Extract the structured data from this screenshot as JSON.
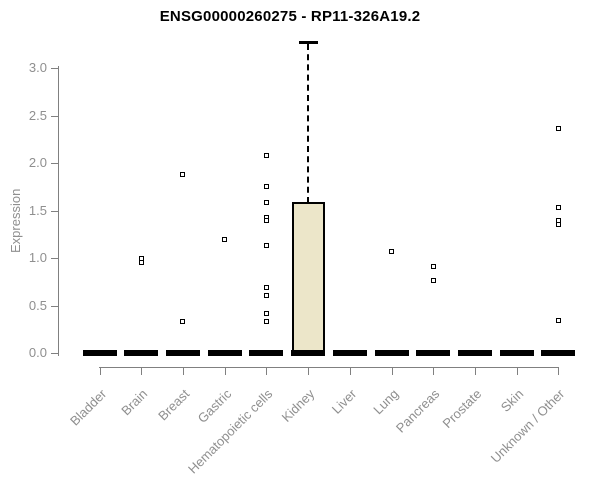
{
  "chart_data": {
    "type": "boxplot",
    "title": "ENSG00000260275 - RP11-326A19.2",
    "xlabel": "",
    "ylabel": "Expression",
    "ylim": [
      0,
      3.3
    ],
    "grid": false,
    "yticks": [
      {
        "label": "0.0",
        "value": 0.0
      },
      {
        "label": "0.5",
        "value": 0.5
      },
      {
        "label": "1.0",
        "value": 1.0
      },
      {
        "label": "1.5",
        "value": 1.5
      },
      {
        "label": "2.0",
        "value": 2.0
      },
      {
        "label": "2.5",
        "value": 2.5
      },
      {
        "label": "3.0",
        "value": 3.0
      }
    ],
    "categories": [
      "Bladder",
      "Brain",
      "Breast",
      "Gastric",
      "Hematopoietic cells",
      "Kidney",
      "Liver",
      "Lung",
      "Pancreas",
      "Prostate",
      "Skin",
      "Unknown / Other"
    ],
    "boxes": [
      {
        "label": "Bladder",
        "q1": 0,
        "median": 0,
        "q3": 0,
        "whisker_low": 0,
        "whisker_high": 0,
        "outliers": []
      },
      {
        "label": "Brain",
        "q1": 0,
        "median": 0,
        "q3": 0,
        "whisker_low": 0,
        "whisker_high": 0,
        "outliers": [
          0.99,
          0.95
        ]
      },
      {
        "label": "Breast",
        "q1": 0,
        "median": 0,
        "q3": 0,
        "whisker_low": 0,
        "whisker_high": 0,
        "outliers": [
          1.88,
          0.33
        ]
      },
      {
        "label": "Gastric",
        "q1": 0,
        "median": 0,
        "q3": 0,
        "whisker_low": 0,
        "whisker_high": 0,
        "outliers": [
          1.19
        ]
      },
      {
        "label": "Hematopoietic cells",
        "q1": 0,
        "median": 0,
        "q3": 0,
        "whisker_low": 0,
        "whisker_high": 0,
        "outliers": [
          2.08,
          1.75,
          1.58,
          1.43,
          1.4,
          1.13,
          0.69,
          0.61,
          0.42,
          0.33
        ]
      },
      {
        "label": "Kidney",
        "q1": 0,
        "median": 0,
        "q3": 1.58,
        "whisker_low": 0,
        "whisker_high": 3.27,
        "outliers": []
      },
      {
        "label": "Liver",
        "q1": 0,
        "median": 0,
        "q3": 0,
        "whisker_low": 0,
        "whisker_high": 0,
        "outliers": []
      },
      {
        "label": "Lung",
        "q1": 0,
        "median": 0,
        "q3": 0,
        "whisker_low": 0,
        "whisker_high": 0,
        "outliers": [
          1.07
        ]
      },
      {
        "label": "Pancreas",
        "q1": 0,
        "median": 0,
        "q3": 0,
        "whisker_low": 0,
        "whisker_high": 0,
        "outliers": [
          0.91,
          0.76
        ]
      },
      {
        "label": "Prostate",
        "q1": 0,
        "median": 0,
        "q3": 0,
        "whisker_low": 0,
        "whisker_high": 0,
        "outliers": []
      },
      {
        "label": "Skin",
        "q1": 0,
        "median": 0,
        "q3": 0,
        "whisker_low": 0,
        "whisker_high": 0,
        "outliers": []
      },
      {
        "label": "Unknown / Other",
        "q1": 0,
        "median": 0,
        "q3": 0,
        "whisker_low": 0,
        "whisker_high": 0,
        "outliers": [
          2.36,
          1.53,
          1.4,
          1.35,
          0.34
        ]
      }
    ],
    "colors": {
      "box_fill": "#ece6c9",
      "box_border": "#000000",
      "median": "#000000",
      "whisker": "#000000",
      "outlier": "#000000",
      "axis_line": "#808080",
      "tick_text": "#8f8f8f",
      "title_text": "#000000",
      "background": "#ffffff"
    }
  }
}
